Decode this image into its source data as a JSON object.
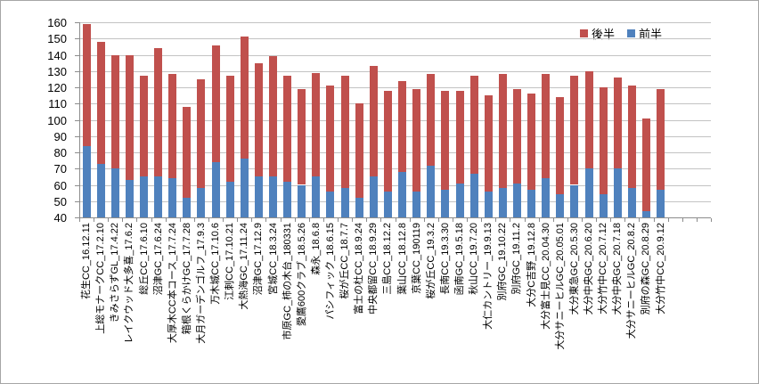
{
  "window": {
    "background_color": "#FFFFFF",
    "border_color": "#A6A6A6"
  },
  "legend": {
    "items": [
      {
        "label": "後半",
        "color": "#C0504D"
      },
      {
        "label": "前半",
        "color": "#4F81BD"
      }
    ]
  },
  "chart_data": {
    "type": "bar",
    "stacked": true,
    "orientation": "vertical",
    "title": "",
    "xlabel": "",
    "ylabel": "",
    "ylim": [
      40,
      160
    ],
    "ytick_step": 10,
    "yticks": [
      160,
      150,
      140,
      130,
      120,
      110,
      100,
      90,
      80,
      70,
      60,
      50,
      40
    ],
    "grid": true,
    "gridline_color": "#C3C3C3",
    "axis_color": "#8C8C8C",
    "legend_position": "top-right",
    "legend_order": [
      "後半",
      "前半"
    ],
    "categories": [
      "花生CC_16.12.11",
      "上総モナークCC_17.2.10",
      "きみさらずGL_17.4.22",
      "レイクウッド大多喜_17.6.2",
      "総丘CC_17.6.10",
      "沼津GC_17.6.24",
      "大厚木CC本コース_17.7.24",
      "箱根くらかけGC_17.7.28",
      "大月ガーデンゴルフ_17.9.3",
      "万木城CC_17.10.6",
      "江刺CC_17.10.21",
      "大熱海GC_17.11.24",
      "沼津GC_17.12.9",
      "宮城CC_18.3.24",
      "市原GC_柿の木台_180331",
      "愛鷹600クラブ_18.5.26",
      "森永_18.6.8",
      "パシフィック_18.6.15",
      "桜が丘CC_18.7.7",
      "富士の杜CC_18.9.24",
      "中央都留CC_18.9.29",
      "三島CC_18.12.2",
      "葉山CC_18.12.8",
      "京葉CC_190119",
      "桜が丘CC_19.3.2",
      "長南CC_19.3.30",
      "函南GC_19.5.18",
      "秋山CC_19.7.20",
      "大仁カントリー_19.9.13",
      "別府GC_19.10.22",
      "別府GC_19.11.2",
      "大分C吉野_19.12.8",
      "大分富士見CC_20.04.30",
      "大分サニーヒルGC_20.05.01",
      "大分東急GC_20.5.30",
      "大分中央GC_20.6.20",
      "大分竹中CC_20.7.12",
      "大分中央GC_20.7.18",
      "大分サニーヒルGC_20.8.2",
      "別府の森GC_20.8.29",
      "大分竹中CC_20.9.12"
    ],
    "series": [
      {
        "name": "前半",
        "color": "#4F81BD",
        "values": [
          84,
          73,
          70,
          63,
          65,
          65,
          64,
          52,
          58,
          74,
          62,
          76,
          65,
          65,
          62,
          60,
          65,
          56,
          58,
          52,
          65,
          56,
          68,
          56,
          72,
          57,
          61,
          67,
          56,
          58,
          61,
          57,
          64,
          54,
          60,
          70,
          54,
          70,
          58,
          44,
          57
        ]
      },
      {
        "name": "後半",
        "color": "#C0504D",
        "values": [
          75,
          75,
          70,
          77,
          62,
          79,
          64,
          56,
          67,
          72,
          65,
          75,
          70,
          74,
          65,
          59,
          64,
          65,
          69,
          58,
          68,
          62,
          56,
          63,
          56,
          61,
          57,
          60,
          59,
          70,
          58,
          59,
          64,
          60,
          67,
          60,
          66,
          56,
          63,
          57,
          62
        ]
      }
    ]
  }
}
